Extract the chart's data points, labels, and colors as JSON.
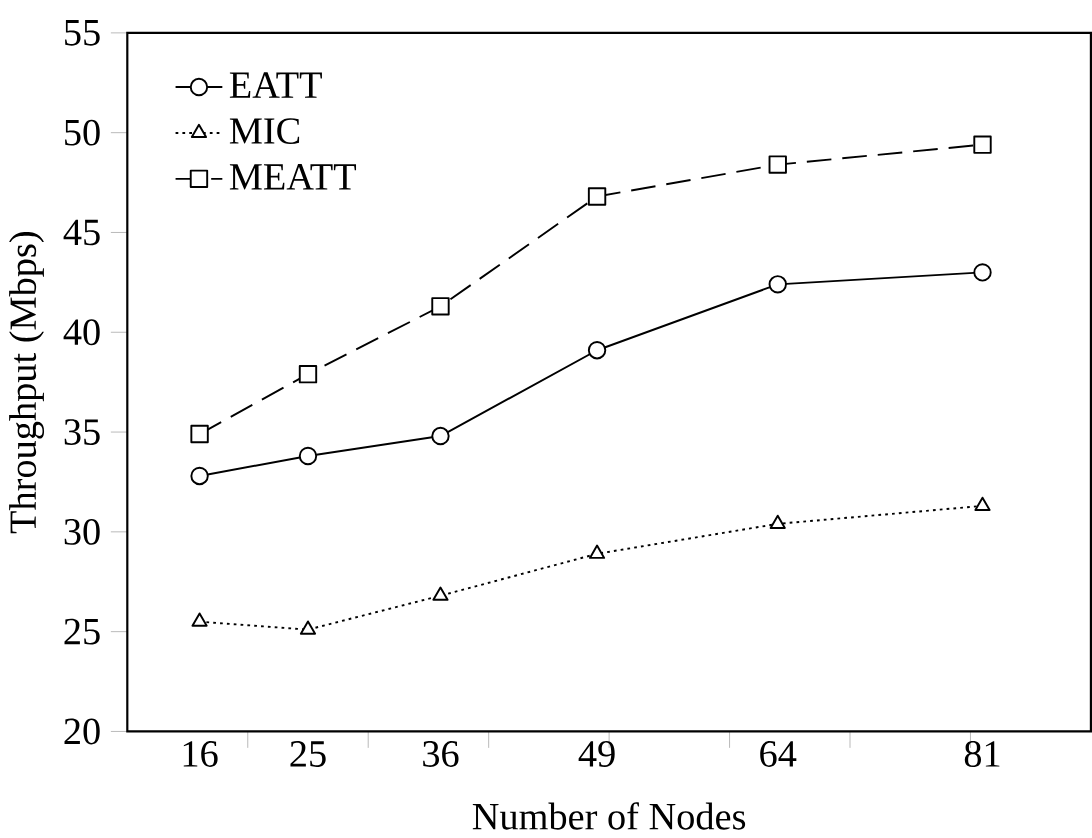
{
  "chart_data": {
    "type": "line",
    "xlabel": "Number of Nodes",
    "ylabel": "Throughput (Mbps)",
    "x": [
      16,
      25,
      36,
      49,
      64,
      81
    ],
    "xlim": [
      10,
      90
    ],
    "ylim": [
      20,
      55
    ],
    "xticks": [
      16,
      25,
      36,
      49,
      64,
      81,
      {
        "value": 20,
        "label": null
      },
      {
        "value": 30,
        "label": null
      },
      {
        "value": 40,
        "label": null
      },
      {
        "value": 50,
        "label": null
      },
      {
        "value": 60,
        "label": null
      },
      {
        "value": 70,
        "label": null
      },
      {
        "value": 80,
        "label": null
      }
    ],
    "yticks": [
      20,
      25,
      30,
      35,
      40,
      45,
      50,
      55
    ],
    "legend": "top left",
    "grid": false,
    "series": [
      {
        "name": "EATT",
        "color": "#000000",
        "marker": "circle",
        "line_style": "solid",
        "values": [
          32.8,
          33.8,
          34.8,
          39.1,
          42.4,
          43.0
        ]
      },
      {
        "name": "MIC",
        "color": "#000000",
        "marker": "triangle",
        "line_style": "dotted",
        "values": [
          25.5,
          25.1,
          26.8,
          28.9,
          30.4,
          31.3
        ]
      },
      {
        "name": "MEATT",
        "color": "#000000",
        "marker": "square",
        "line_style": "dashed",
        "values": [
          34.9,
          37.9,
          41.3,
          46.8,
          48.4,
          49.4
        ]
      }
    ]
  }
}
